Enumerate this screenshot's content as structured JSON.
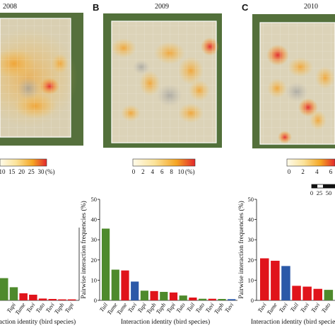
{
  "panels": [
    {
      "letter": "",
      "year": "2008"
    },
    {
      "letter": "B",
      "year": "2009"
    },
    {
      "letter": "C",
      "year": "2010"
    }
  ],
  "colorbars": [
    {
      "ticks": [
        "10",
        "15",
        "20",
        "25",
        "30"
      ],
      "unit": "(%)"
    },
    {
      "ticks": [
        "0",
        "2",
        "4",
        "6",
        "8",
        "10"
      ],
      "unit": "(%)"
    },
    {
      "ticks": [
        "0",
        "2",
        "4",
        "6"
      ],
      "unit": ""
    }
  ],
  "scalebar": {
    "labels": [
      "0",
      "25",
      "50"
    ]
  },
  "colors": {
    "green": "#4e8a2c",
    "red": "#e0141b",
    "blue": "#2b59a8",
    "heat_low": "#fbe9a0",
    "heat_mid": "#f5a623",
    "heat_high": "#e3282c"
  },
  "chart_data": [
    {
      "type": "bar",
      "title": "2008",
      "xlabel": "Interaction identity (bird species)",
      "ylabel": "",
      "ylim": [
        0,
        50
      ],
      "categories": [
        "",
        "Tupi",
        "Tume",
        "Tuvi",
        "Tuto",
        "Tuvi",
        "Tuph",
        "Tupi"
      ],
      "values": [
        11,
        6.5,
        3.5,
        2.8,
        0.9,
        0.7,
        0.5,
        0.5
      ],
      "bar_colors": [
        "green",
        "green",
        "red",
        "red",
        "red",
        "red",
        "red",
        "red"
      ]
    },
    {
      "type": "bar",
      "title": "2009",
      "xlabel": "Interaction identity (bird species)",
      "ylabel": "Pairwise interaction frequencies (%)",
      "ylim": [
        0,
        50
      ],
      "yticks": [
        "0",
        "10",
        "20",
        "30",
        "40",
        "50"
      ],
      "categories": [
        "Tuil",
        "Tume",
        "Tume",
        "Tuvi",
        "Tupi",
        "Tuph",
        "Tuph",
        "Tupi",
        "Tuto",
        "Tuil",
        "Tuto",
        "Tuvi",
        "Tuph",
        "Tuvi"
      ],
      "values": [
        35.5,
        15.2,
        14.8,
        9.3,
        4.8,
        4.6,
        4.2,
        3.9,
        2.4,
        1.4,
        0.8,
        0.8,
        0.7,
        0.6
      ],
      "bar_colors": [
        "green",
        "green",
        "red",
        "blue",
        "green",
        "red",
        "green",
        "red",
        "green",
        "red",
        "green",
        "red",
        "green",
        "blue"
      ]
    },
    {
      "type": "bar",
      "title": "2010",
      "xlabel": "Interaction identity (bird species)",
      "ylabel": "Pairwise interaction frequencies (%)",
      "ylim": [
        0,
        50
      ],
      "yticks": [
        "0",
        "10",
        "20",
        "30",
        "40",
        "50"
      ],
      "categories": [
        "Tuvi",
        "Tume",
        "Tuvi",
        "Tuil",
        "Tuvi",
        "Tuvi",
        "Tuto"
      ],
      "values": [
        20.8,
        19.6,
        17.0,
        7.2,
        6.8,
        5.7,
        5.2
      ],
      "bar_colors": [
        "red",
        "red",
        "blue",
        "red",
        "red",
        "red",
        "green"
      ]
    }
  ]
}
